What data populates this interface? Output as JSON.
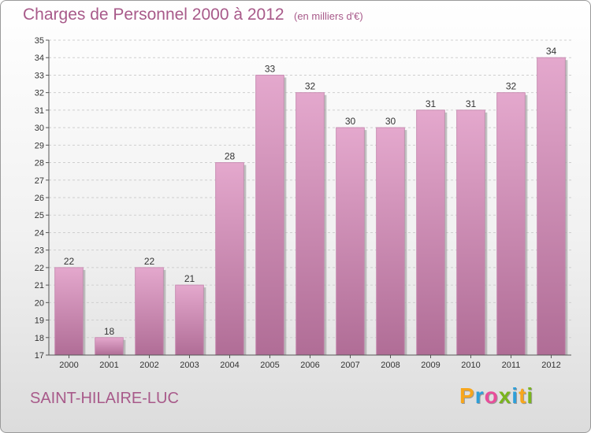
{
  "title": "Charges de Personnel 2000 à 2012",
  "subtitle": "(en milliers d'€)",
  "commune": "SAINT-HILAIRE-LUC",
  "logo": {
    "letters": [
      "P",
      "r",
      "o",
      "x",
      "i",
      "t",
      "i"
    ],
    "colors": [
      "#f7a61d",
      "#2f9fd8",
      "#e84d9a",
      "#7ab51d",
      "#2f9fd8",
      "#f7a61d",
      "#7ab51d"
    ]
  },
  "colors": {
    "bar_top": "#e4a8cd",
    "bar_bottom": "#b06d96",
    "title": "#a85a8a"
  },
  "chart_data": {
    "type": "bar",
    "title": "Charges de Personnel 2000 à 2012",
    "subtitle": "(en milliers d'€)",
    "categories": [
      "2000",
      "2001",
      "2002",
      "2003",
      "2004",
      "2005",
      "2006",
      "2007",
      "2008",
      "2009",
      "2010",
      "2011",
      "2012"
    ],
    "values": [
      22,
      18,
      22,
      21,
      28,
      33,
      32,
      30,
      30,
      31,
      31,
      32,
      34
    ],
    "ylim": [
      17,
      35
    ],
    "yticks": [
      17,
      18,
      19,
      20,
      21,
      22,
      23,
      24,
      25,
      26,
      27,
      28,
      29,
      30,
      31,
      32,
      33,
      34,
      35
    ],
    "grid": true,
    "data_labels": true
  }
}
